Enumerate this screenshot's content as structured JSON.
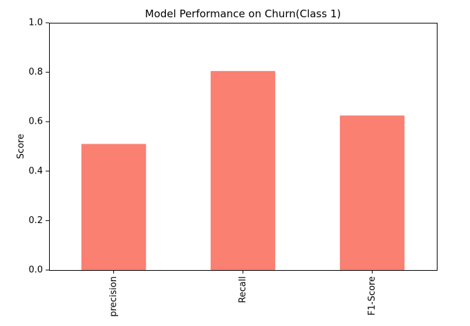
{
  "chart_data": {
    "type": "bar",
    "title": "Model Performance on Churn(Class 1)",
    "xlabel": "",
    "ylabel": "Score",
    "categories": [
      "precision",
      "Recall",
      "F1-Score"
    ],
    "values": [
      0.51,
      0.805,
      0.625
    ],
    "ylim": [
      0,
      1.0
    ],
    "yticks": [
      0.0,
      0.2,
      0.4,
      0.6,
      0.8,
      1.0
    ],
    "ytick_labels": [
      "0.0",
      "0.2",
      "0.4",
      "0.6",
      "0.8",
      "1.0"
    ],
    "bar_color": "#fa8072",
    "grid": false,
    "legend": "none"
  }
}
